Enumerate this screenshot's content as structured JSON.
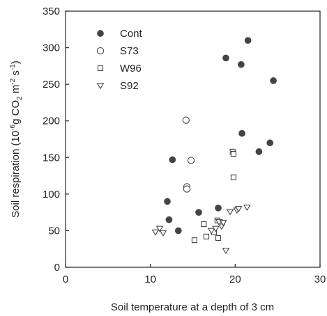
{
  "chart_data": {
    "type": "scatter",
    "xlabel": "Soil temperature at a depth of 3 cm",
    "ylabel": {
      "prefix": "Soil respiration (10",
      "exp1": "-6",
      "mid1": "g CO",
      "sub1": "2",
      "mid2": " m",
      "exp2": "-2",
      "mid3": " s",
      "exp3": "-1",
      "suffix": ")"
    },
    "xlim": [
      0,
      30
    ],
    "ylim": [
      0,
      350
    ],
    "xticks": [
      "0",
      "10",
      "20",
      "30"
    ],
    "yticks": [
      "0",
      "50",
      "100",
      "150",
      "200",
      "250",
      "300",
      "350"
    ],
    "grid": false,
    "legend_position": "top-left",
    "series": [
      {
        "name": "Cont",
        "marker": "filled-circle",
        "color": "#444444",
        "x": [
          12.0,
          12.2,
          12.6,
          13.3,
          15.7,
          18.0,
          18.9,
          20.7,
          20.8,
          21.5,
          22.8,
          24.1,
          24.5
        ],
        "y": [
          90,
          65,
          147,
          50,
          75,
          81,
          286,
          277,
          183,
          310,
          158,
          170,
          255
        ]
      },
      {
        "name": "S73",
        "marker": "open-circle",
        "color": "#444444",
        "x": [
          14.2,
          14.3,
          14.3,
          14.8
        ],
        "y": [
          201,
          110,
          107,
          146
        ]
      },
      {
        "name": "W96",
        "marker": "open-square",
        "color": "#444444",
        "x": [
          15.2,
          16.3,
          16.6,
          17.5,
          17.9,
          18.0,
          19.7,
          19.8,
          19.8
        ],
        "y": [
          37,
          59,
          42,
          48,
          64,
          40,
          158,
          155,
          123
        ]
      },
      {
        "name": "S92",
        "marker": "open-triangle-down",
        "color": "#444444",
        "x": [
          10.6,
          11.1,
          11.5,
          17.2,
          17.7,
          18.1,
          18.4,
          18.6,
          18.9,
          19.4,
          20.2,
          20.4,
          21.4
        ],
        "y": [
          48,
          53,
          47,
          50,
          53,
          62,
          56,
          61,
          23,
          76,
          78,
          80,
          82
        ]
      }
    ]
  }
}
